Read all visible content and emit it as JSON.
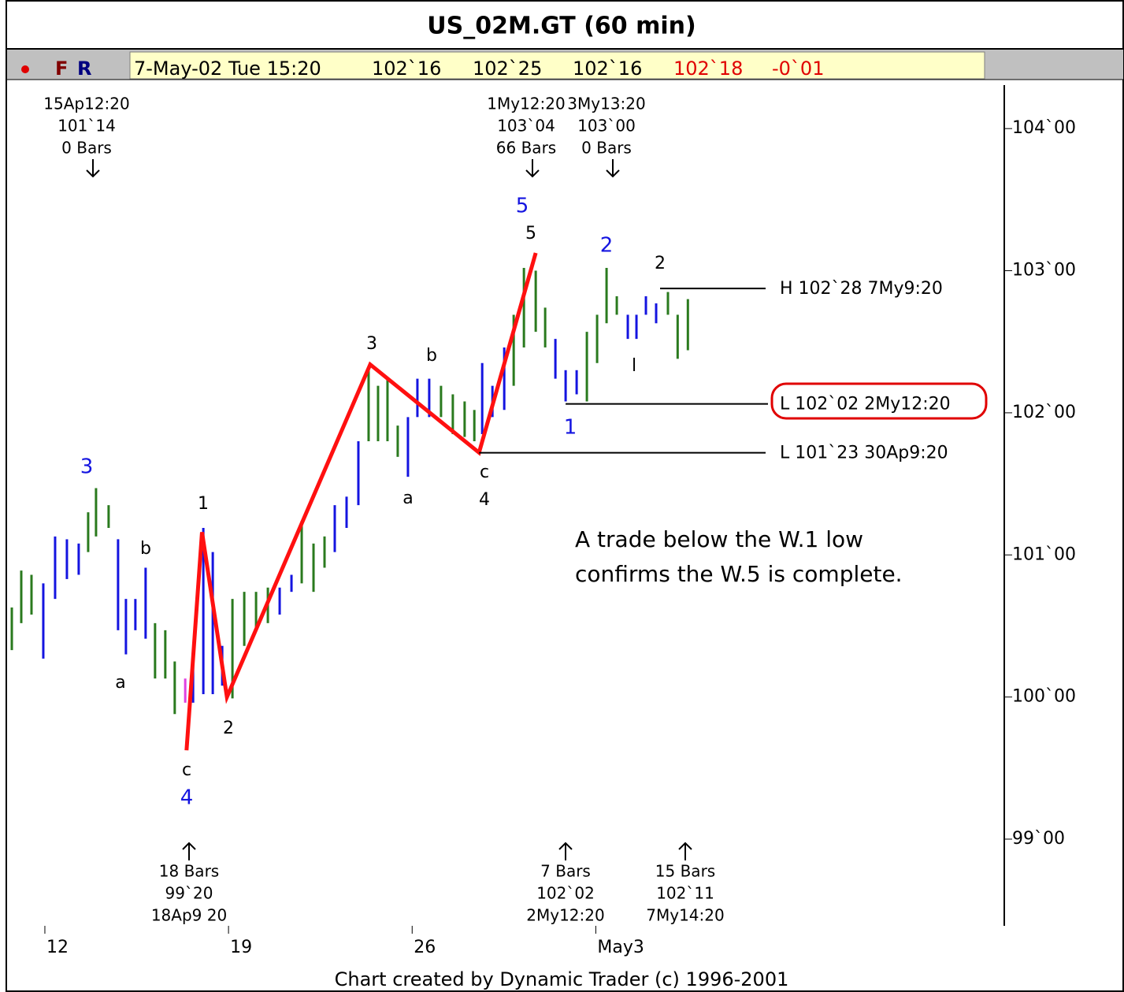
{
  "header": {
    "title": "US_02M.GT (60 min)",
    "buttons": [
      "F",
      "R"
    ],
    "quote": {
      "time": "7-May-02 Tue 15:20",
      "black": [
        "102`16",
        "102`25",
        "102`16"
      ],
      "red": [
        "102`18",
        "-0`01"
      ]
    }
  },
  "footer": "Chart created by Dynamic Trader (c) 1996-2001",
  "chart_data": {
    "type": "hl-bars",
    "xlim": [
      10.59,
      48.57
    ],
    "ylim": [
      98.39,
      104.306
    ],
    "xticks": [
      {
        "value": 12,
        "label": "12"
      },
      {
        "value": 19,
        "label": "19"
      },
      {
        "value": 26,
        "label": "26"
      },
      {
        "value": 33,
        "label": "May3"
      }
    ],
    "yticks": [
      {
        "value": 99,
        "label": "99`00"
      },
      {
        "value": 100,
        "label": "100`00"
      },
      {
        "value": 101,
        "label": "101`00"
      },
      {
        "value": 102,
        "label": "102`00"
      },
      {
        "value": 103,
        "label": "103`00"
      },
      {
        "value": 104,
        "label": "104`00"
      }
    ],
    "series": [
      {
        "color": "#2a7a1e",
        "x": [
          10.74,
          11.1,
          11.49,
          13.65,
          13.95,
          14.43,
          16.2,
          16.59,
          16.95,
          19.15,
          19.6,
          20.05,
          20.5,
          21.79,
          22.24,
          22.66,
          24.34,
          24.7,
          25.06,
          25.45,
          27.1,
          27.55,
          28.0,
          28.37,
          29.87,
          30.26,
          30.71,
          31.07,
          32.66,
          33.05,
          33.41,
          33.8,
          35.75,
          36.12,
          36.51
        ],
        "high": [
          100.63,
          100.89,
          100.86,
          101.3,
          101.47,
          101.35,
          100.52,
          100.47,
          100.25,
          100.69,
          100.74,
          100.74,
          100.77,
          101.24,
          101.08,
          101.13,
          102.3,
          102.19,
          102.24,
          101.91,
          102.19,
          102.13,
          102.08,
          102.02,
          102.69,
          103.02,
          103.0,
          102.74,
          102.57,
          102.69,
          103.02,
          102.82,
          102.85,
          102.69,
          102.8
        ],
        "low": [
          100.33,
          100.52,
          100.58,
          101.02,
          101.13,
          101.19,
          100.13,
          100.13,
          99.88,
          99.99,
          100.36,
          100.47,
          100.52,
          100.8,
          100.74,
          100.91,
          101.8,
          101.8,
          101.8,
          101.69,
          101.97,
          101.85,
          101.83,
          101.8,
          102.19,
          102.46,
          102.57,
          102.46,
          102.08,
          102.35,
          102.63,
          102.69,
          102.69,
          102.38,
          102.44
        ]
      },
      {
        "color": "#1414e0",
        "x": [
          11.94,
          12.39,
          12.84,
          13.29,
          14.79,
          15.09,
          15.45,
          15.84,
          17.65,
          18.04,
          18.4,
          18.76,
          20.95,
          21.4,
          23.05,
          23.5,
          23.95,
          25.84,
          26.2,
          26.65,
          28.67,
          29.06,
          29.51,
          31.46,
          31.85,
          32.27,
          34.22,
          34.55,
          34.91,
          35.3
        ],
        "high": [
          100.8,
          101.13,
          101.11,
          101.08,
          101.11,
          100.69,
          100.69,
          100.91,
          100.3,
          101.19,
          101.02,
          100.36,
          100.77,
          100.86,
          101.35,
          101.41,
          101.8,
          101.97,
          102.24,
          102.24,
          102.35,
          102.19,
          102.46,
          102.52,
          102.3,
          102.3,
          102.69,
          102.69,
          102.82,
          102.77
        ],
        "low": [
          100.27,
          100.69,
          100.83,
          100.86,
          100.47,
          100.3,
          100.47,
          100.41,
          99.96,
          100.02,
          100.02,
          100.08,
          100.58,
          100.74,
          101.02,
          101.19,
          101.35,
          101.55,
          101.97,
          101.97,
          101.85,
          101.97,
          102.02,
          102.24,
          102.08,
          102.13,
          102.52,
          102.52,
          102.69,
          102.63
        ]
      },
      {
        "color": "#e040e0",
        "x": [
          17.35
        ],
        "high": [
          100.13
        ],
        "low": [
          99.96
        ]
      }
    ],
    "wave_line": {
      "color": "#ff1010",
      "x": [
        17.4,
        17.99,
        18.94,
        24.4,
        28.55,
        30.71
      ],
      "values": [
        99.625,
        101.16,
        100.0,
        102.34,
        101.72,
        103.125
      ]
    },
    "levels": [
      {
        "label": "H 102`28 7My9:20",
        "value": 102.875,
        "x_start": 35.45
      },
      {
        "label": "L 102`02 2My12:20",
        "value": 102.0625,
        "x_start": 31.85
      },
      {
        "label": "L 101`23 30Ap9:20",
        "value": 101.71875,
        "x_start": 28.55
      }
    ],
    "annotations": [
      {
        "text": "3",
        "color": "#1414e0"
      },
      {
        "text": "b",
        "color": "#000"
      },
      {
        "text": "a",
        "color": "#000"
      },
      {
        "text": "1",
        "color": "#000"
      },
      {
        "text": "2",
        "color": "#000"
      },
      {
        "text": "c",
        "color": "#000"
      },
      {
        "text": "4",
        "color": "#1414e0"
      },
      {
        "text": "3",
        "color": "#000"
      },
      {
        "text": "b",
        "color": "#000"
      },
      {
        "text": "a",
        "color": "#000"
      },
      {
        "text": "c",
        "color": "#000"
      },
      {
        "text": "4",
        "color": "#000"
      },
      {
        "text": "5",
        "color": "#1414e0"
      },
      {
        "text": "5",
        "color": "#000"
      },
      {
        "text": "2",
        "color": "#1414e0"
      },
      {
        "text": "2",
        "color": "#000"
      },
      {
        "text": "1",
        "color": "#1414e0"
      },
      {
        "text": "l",
        "color": "#000"
      }
    ],
    "callouts_top": [
      [
        "15Ap12:20",
        "101`14",
        "0 Bars"
      ],
      [
        "1My12:20",
        "103`04",
        "66 Bars"
      ],
      [
        "3My13:20",
        "103`00",
        "0 Bars"
      ]
    ],
    "callouts_bottom": [
      [
        "18 Bars",
        "99`20",
        "18Ap9 20"
      ],
      [
        "7 Bars",
        "102`02",
        "2My12:20"
      ],
      [
        "15 Bars",
        "102`11",
        "7My14:20"
      ]
    ],
    "note": [
      "A trade below the W.1 low",
      "confirms the W.5 is complete."
    ]
  }
}
